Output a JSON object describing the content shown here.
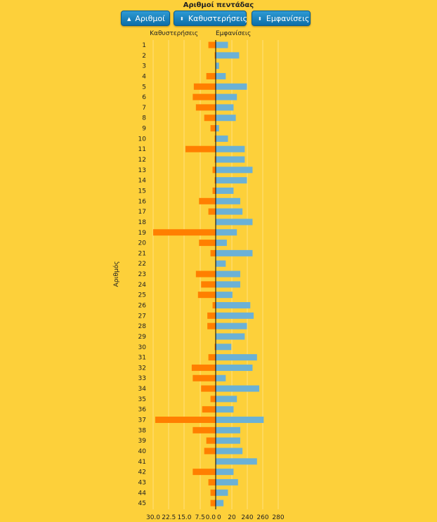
{
  "header": {
    "title": "Αριθμοί πεντάδας",
    "buttons": [
      {
        "label": "Αριθμοί",
        "icon": "sort-up-icon",
        "glyph": "▲"
      },
      {
        "label": "Καθυστερήσεις",
        "icon": "sort-both-icon",
        "glyph": "⬍"
      },
      {
        "label": "Εμφανίσεις",
        "icon": "sort-both-icon",
        "glyph": "⬍"
      }
    ]
  },
  "chart_data": {
    "type": "bar",
    "orientation": "horizontal-butterfly",
    "ylabel": "Αριθμός",
    "categories": [
      "1",
      "2",
      "3",
      "4",
      "5",
      "6",
      "7",
      "8",
      "9",
      "10",
      "11",
      "12",
      "13",
      "14",
      "15",
      "16",
      "17",
      "18",
      "19",
      "20",
      "21",
      "22",
      "23",
      "24",
      "25",
      "26",
      "27",
      "28",
      "29",
      "30",
      "31",
      "32",
      "33",
      "34",
      "35",
      "36",
      "37",
      "38",
      "39",
      "40",
      "41",
      "42",
      "43",
      "44",
      "45"
    ],
    "series": [
      {
        "name": "Καθυστερήσεις",
        "color": "#ff7f00",
        "side": "left",
        "ticks": [
          "30.0",
          "22.5",
          "15.0",
          "7.5",
          "0.0"
        ],
        "xlim": [
          0,
          30
        ],
        "values": [
          3.5,
          0.5,
          0,
          4.5,
          10.5,
          11,
          9.5,
          5.5,
          2.5,
          0.5,
          14.5,
          0.5,
          1.5,
          0.5,
          1.5,
          8,
          3.5,
          0,
          30,
          8,
          2.5,
          0,
          9.5,
          7,
          8.5,
          1.5,
          4,
          4,
          0,
          0.5,
          3.5,
          11.5,
          11,
          7,
          2.5,
          6.5,
          29,
          11,
          4.5,
          5.5,
          0,
          11,
          3.5,
          2.5,
          2.5
        ]
      },
      {
        "name": "Εμφανίσεις",
        "color": "#6bb1d6",
        "side": "right",
        "ticks": [
          "0",
          "20",
          "240",
          "260",
          "280"
        ],
        "xlim": [
          0,
          280
        ],
        "values": [
          55,
          105,
          15,
          45,
          140,
          95,
          80,
          90,
          15,
          55,
          130,
          130,
          165,
          140,
          80,
          110,
          120,
          165,
          95,
          50,
          165,
          45,
          110,
          110,
          75,
          155,
          170,
          140,
          130,
          70,
          185,
          165,
          45,
          195,
          95,
          80,
          215,
          110,
          110,
          120,
          185,
          80,
          100,
          55,
          35
        ]
      }
    ]
  }
}
